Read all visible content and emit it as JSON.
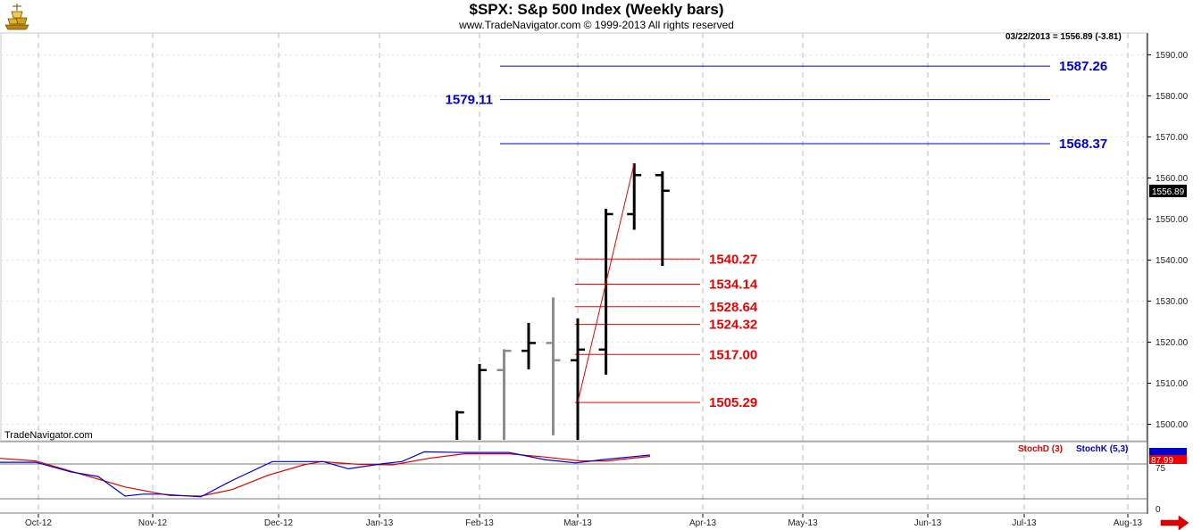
{
  "header": {
    "title": "$SPX:  S&p 500 Index  (Weekly bars)",
    "copyright": "www.TradeNavigator.com © 1999-2013 All rights reserved",
    "readout": "03/22/2013 = 1556.89 (-3.81)",
    "watermark": "TradeNavigator.com",
    "logo_icon": "gold-bars-logo-icon",
    "scroll_icon": "right-arrow-icon"
  },
  "colors": {
    "blue_levels": "#0000cc",
    "red_levels": "#ee0000",
    "bars_black": "#000000",
    "bars_gray": "#8c8c8c",
    "trendline": "#ee0000",
    "stochd": "#dd0000",
    "stochk": "#0000cc",
    "grid": "#b8b8b8"
  },
  "chart_data": [
    {
      "type": "ohlc",
      "title": "$SPX:  S&p 500 Index  (Weekly bars)",
      "y_ticks": [
        "1500.00",
        "1510.00",
        "1520.00",
        "1530.00",
        "1540.00",
        "1550.00",
        "1560.00",
        "1570.00",
        "1580.00",
        "1590.00"
      ],
      "ylim": [
        1496,
        1601
      ],
      "x_ticks": [
        "Oct-12",
        "Nov-12",
        "Dec-12",
        "Jan-13",
        "Feb-13",
        "Mar-13",
        "Apr-13",
        "May-13",
        "Jun-13",
        "Jul-13",
        "Aug-13"
      ],
      "last_price_tag": "1556.89",
      "grid": true,
      "bars": [
        {
          "week": "2013-01-25",
          "color": "black",
          "high": 1503.3,
          "low": 1496,
          "close": 1502.9
        },
        {
          "week": "2013-02-01",
          "color": "black",
          "high": 1514.7,
          "low": 1496,
          "close": 1513.2
        },
        {
          "week": "2013-02-08",
          "color": "gray",
          "open": 1513.2,
          "high": 1518.3,
          "low": 1496,
          "close": 1517.9
        },
        {
          "week": "2013-02-15",
          "color": "black",
          "open": 1517.9,
          "high": 1524.7,
          "low": 1513.4,
          "close": 1519.8
        },
        {
          "week": "2013-02-22",
          "color": "gray",
          "open": 1519.8,
          "high": 1530.9,
          "low": 1497.3,
          "close": 1515.6
        },
        {
          "week": "2013-03-01",
          "color": "black",
          "open": 1515.6,
          "high": 1525.8,
          "low": 1496,
          "close": 1518.2
        },
        {
          "week": "2013-03-08",
          "color": "black",
          "open": 1518.2,
          "high": 1552.5,
          "low": 1512.1,
          "close": 1551.2
        },
        {
          "week": "2013-03-15",
          "color": "black",
          "open": 1551.2,
          "high": 1563.6,
          "low": 1547.4,
          "close": 1560.7
        },
        {
          "week": "2013-03-22",
          "color": "black",
          "open": 1560.7,
          "high": 1561.6,
          "low": 1538.6,
          "close": 1556.9
        }
      ],
      "fib_levels_red": [
        {
          "label": "1540.27",
          "value": 1540.27
        },
        {
          "label": "1534.14",
          "value": 1534.14
        },
        {
          "label": "1528.64",
          "value": 1528.64
        },
        {
          "label": "1524.32",
          "value": 1524.32
        },
        {
          "label": "1517.00",
          "value": 1517.0
        },
        {
          "label": "1505.29",
          "value": 1505.29
        }
      ],
      "target_levels_blue": [
        {
          "label": "1587.26",
          "value": 1587.26
        },
        {
          "label": "1579.11",
          "value": 1579.11
        },
        {
          "label": "1568.37",
          "value": 1568.37
        }
      ],
      "trendline": {
        "from": {
          "week": "2013-03-01",
          "value": 1505.29
        },
        "to": {
          "week": "2013-03-15",
          "value": 1563.6
        }
      }
    },
    {
      "type": "line",
      "legend": [
        "StochD (3)",
        "StochK (5,3)"
      ],
      "y_ticks": [
        "75",
        "0"
      ],
      "last_value_tag": "87.99",
      "ylim": [
        0,
        100
      ],
      "series": [
        {
          "name": "StochD (3)",
          "color": "red",
          "points": [
            [
              0,
              84
            ],
            [
              40,
              80
            ],
            [
              90,
              60
            ],
            [
              140,
              40
            ],
            [
              190,
              27
            ],
            [
              225,
              26
            ],
            [
              260,
              36
            ],
            [
              300,
              58
            ],
            [
              340,
              74
            ],
            [
              360,
              79
            ],
            [
              400,
              75
            ],
            [
              440,
              74
            ],
            [
              480,
              84
            ],
            [
              520,
              91
            ],
            [
              570,
              91
            ],
            [
              610,
              86
            ],
            [
              650,
              80
            ],
            [
              680,
              80
            ],
            [
              700,
              83
            ],
            [
              728,
              87
            ]
          ]
        },
        {
          "name": "StochK (5,3)",
          "color": "blue",
          "points": [
            [
              0,
              78
            ],
            [
              40,
              78
            ],
            [
              80,
              63
            ],
            [
              110,
              56
            ],
            [
              140,
              26
            ],
            [
              160,
              29
            ],
            [
              180,
              29
            ],
            [
              225,
              25
            ],
            [
              260,
              50
            ],
            [
              305,
              79
            ],
            [
              362,
              79
            ],
            [
              390,
              68
            ],
            [
              430,
              76
            ],
            [
              450,
              79
            ],
            [
              475,
              94
            ],
            [
              520,
              93
            ],
            [
              570,
              93
            ],
            [
              610,
              82
            ],
            [
              645,
              77
            ],
            [
              675,
              82
            ],
            [
              705,
              86
            ],
            [
              728,
              89
            ]
          ]
        }
      ]
    }
  ]
}
